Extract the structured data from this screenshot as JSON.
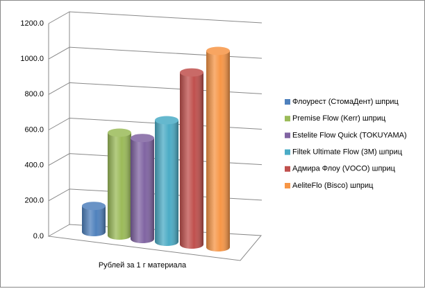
{
  "chart_data": {
    "type": "bar3d",
    "categories": [
      "Рублей за 1 г материала"
    ],
    "series": [
      {
        "name": "Флоурест (СтомаДент) шприц",
        "color": "#4f81bd",
        "values": [
          140
        ]
      },
      {
        "name": "Premise Flow (Kerr) шприц",
        "color": "#9bbb59",
        "values": [
          550
        ]
      },
      {
        "name": "Estelite Flow Quick (TOKUYAMA)",
        "color": "#8064a2",
        "values": [
          540
        ]
      },
      {
        "name": "Filtek Ultimate Flow (3M) шприц",
        "color": "#4bacc6",
        "values": [
          650
        ]
      },
      {
        "name": "Адмира Флоу (VOCO) шприц",
        "color": "#c0504d",
        "values": [
          920
        ]
      },
      {
        "name": "AeliteFlo (Bisco) шприц",
        "color": "#f79646",
        "values": [
          1050
        ]
      }
    ],
    "ylim": [
      0,
      1200
    ],
    "yticks": [
      {
        "value": 0,
        "label": "0.0"
      },
      {
        "value": 200,
        "label": "200.0"
      },
      {
        "value": 400,
        "label": "400.0"
      },
      {
        "value": 600,
        "label": "600.0"
      },
      {
        "value": 800,
        "label": "800.0"
      },
      {
        "value": 1000,
        "label": "1000.0"
      },
      {
        "value": 1200,
        "label": "1200.0"
      }
    ],
    "grid": true,
    "legend": "right"
  }
}
